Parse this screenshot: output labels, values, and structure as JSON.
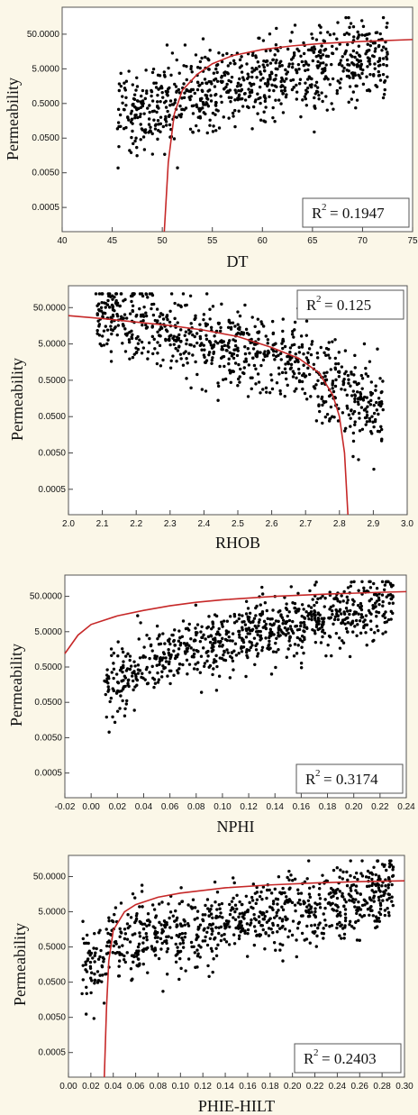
{
  "theme": {
    "background": "#fbf7e8",
    "point_color": "#000000",
    "fit_color": "#c62828"
  },
  "chart_data": [
    {
      "type": "scatter",
      "xlabel": "DT",
      "ylabel": "Permeability",
      "x_ticks": [
        40,
        45,
        50,
        55,
        60,
        65,
        70,
        75
      ],
      "x_tick_labels": [
        "40",
        "45",
        "50",
        "55",
        "60",
        "65",
        "70",
        "75"
      ],
      "y_ticks": [
        0.0005,
        0.005,
        0.05,
        0.5,
        5,
        50
      ],
      "y_tick_labels": [
        "0.0005",
        "0.0050",
        "0.0500",
        "0.5000",
        "5.0000",
        "50.0000"
      ],
      "xlim": [
        40,
        75
      ],
      "ylim": [
        0.0001,
        300
      ],
      "log_y": true,
      "r2_prefix": "R",
      "r2_sup": "2",
      "r2_value": "= 0.1947",
      "r2_position": "bottom-right",
      "fit_curve": {
        "x": [
          50.2,
          50.6,
          51.2,
          52.0,
          53.5,
          55.0,
          57.0,
          60.0,
          63.0,
          66.0,
          70.0,
          75.0
        ],
        "y": [
          0.0001,
          0.01,
          0.25,
          1.2,
          3.5,
          7.0,
          12.0,
          18.0,
          23.0,
          27.0,
          31.0,
          35.0
        ]
      },
      "points": {
        "seed": 11,
        "x_min": 45.5,
        "x_max": 72.5,
        "n": 820,
        "base": -7.5,
        "slope": 0.14,
        "spread": 1.35,
        "y_cap": 150
      }
    },
    {
      "type": "scatter",
      "xlabel": "RHOB",
      "ylabel": "Permeability",
      "x_ticks": [
        2.0,
        2.1,
        2.2,
        2.3,
        2.4,
        2.5,
        2.6,
        2.7,
        2.8,
        2.9,
        3.0
      ],
      "x_tick_labels": [
        "2.0",
        "2.1",
        "2.2",
        "2.3",
        "2.4",
        "2.5",
        "2.6",
        "2.7",
        "2.8",
        "2.9",
        "3.0"
      ],
      "y_ticks": [
        0.0005,
        0.005,
        0.05,
        0.5,
        5,
        50
      ],
      "y_tick_labels": [
        "0.0005",
        "0.0050",
        "0.0500",
        "0.5000",
        "5.0000",
        "50.0000"
      ],
      "xlim": [
        2.0,
        3.0
      ],
      "ylim": [
        0.0001,
        200
      ],
      "log_y": true,
      "r2_prefix": "R",
      "r2_sup": "2",
      "r2_value": "= 0.125",
      "r2_position": "top-right",
      "fit_curve": {
        "x": [
          2.0,
          2.1,
          2.2,
          2.3,
          2.4,
          2.5,
          2.6,
          2.68,
          2.74,
          2.78,
          2.8,
          2.815,
          2.825
        ],
        "y": [
          30.0,
          25.0,
          20.0,
          16.0,
          12.0,
          8.0,
          4.0,
          2.0,
          0.8,
          0.2,
          0.05,
          0.005,
          0.0001
        ]
      },
      "points": {
        "seed": 23,
        "x_min": 2.08,
        "x_max": 2.93,
        "n": 800,
        "base": 14.8,
        "slope": -5.4,
        "spread": 1.25,
        "y_cap": 120
      }
    },
    {
      "type": "scatter",
      "xlabel": "NPHI",
      "ylabel": "Permeability",
      "x_ticks": [
        -0.02,
        0.0,
        0.02,
        0.04,
        0.06,
        0.08,
        0.1,
        0.12,
        0.14,
        0.16,
        0.18,
        0.2,
        0.22,
        0.24
      ],
      "x_tick_labels": [
        "-0.02",
        "0.00",
        "0.02",
        "0.04",
        "0.06",
        "0.08",
        "0.10",
        "0.12",
        "0.14",
        "0.16",
        "0.18",
        "0.20",
        "0.22",
        "0.24"
      ],
      "y_ticks": [
        0.0005,
        0.005,
        0.05,
        0.5,
        5,
        50
      ],
      "y_tick_labels": [
        "0.0005",
        "0.0050",
        "0.0500",
        "0.5000",
        "5.0000",
        "50.0000"
      ],
      "xlim": [
        -0.02,
        0.24
      ],
      "ylim": [
        0.0001,
        200
      ],
      "log_y": true,
      "r2_prefix": "R",
      "r2_sup": "2",
      "r2_value": "= 0.3174",
      "r2_position": "bottom-right",
      "fit_curve": {
        "x": [
          -0.02,
          -0.01,
          0.0,
          0.02,
          0.04,
          0.06,
          0.08,
          0.1,
          0.14,
          0.18,
          0.22,
          0.24
        ],
        "y": [
          1.2,
          4.0,
          8.0,
          14.0,
          20.0,
          27.0,
          34.0,
          40.0,
          50.0,
          58.0,
          65.0,
          68.0
        ]
      },
      "points": {
        "seed": 37,
        "x_min": 0.01,
        "x_max": 0.23,
        "n": 820,
        "base": -1.0,
        "slope": 20.0,
        "spread": 1.05,
        "y_cap": 130
      }
    },
    {
      "type": "scatter",
      "xlabel": "PHIE-HILT",
      "ylabel": "Permeability",
      "x_ticks": [
        0.0,
        0.02,
        0.04,
        0.06,
        0.08,
        0.1,
        0.12,
        0.14,
        0.16,
        0.18,
        0.2,
        0.22,
        0.24,
        0.26,
        0.28,
        0.3
      ],
      "x_tick_labels": [
        "0.00",
        "0.02",
        "0.04",
        "0.06",
        "0.08",
        "0.10",
        "0.12",
        "0.14",
        "0.16",
        "0.18",
        "0.20",
        "0.22",
        "0.24",
        "0.26",
        "0.28",
        "0.30"
      ],
      "y_ticks": [
        0.0005,
        0.005,
        0.05,
        0.5,
        5,
        50
      ],
      "y_tick_labels": [
        "0.0005",
        "0.0050",
        "0.0500",
        "0.5000",
        "5.0000",
        "50.0000"
      ],
      "xlim": [
        0.0,
        0.3
      ],
      "ylim": [
        0.0001,
        200
      ],
      "log_y": true,
      "r2_prefix": "R",
      "r2_sup": "2",
      "r2_value": "= 0.2403",
      "r2_position": "bottom-right",
      "fit_curve": {
        "x": [
          0.032,
          0.034,
          0.036,
          0.04,
          0.05,
          0.06,
          0.08,
          0.1,
          0.14,
          0.18,
          0.22,
          0.26,
          0.3
        ],
        "y": [
          0.0001,
          0.01,
          0.2,
          1.5,
          5.0,
          8.0,
          13.0,
          17.0,
          24.0,
          29.0,
          33.0,
          36.0,
          38.0
        ]
      },
      "points": {
        "seed": 51,
        "x_min": 0.012,
        "x_max": 0.29,
        "n": 860,
        "base": -1.3,
        "slope": 15.0,
        "spread": 1.2,
        "y_cap": 140
      }
    }
  ]
}
